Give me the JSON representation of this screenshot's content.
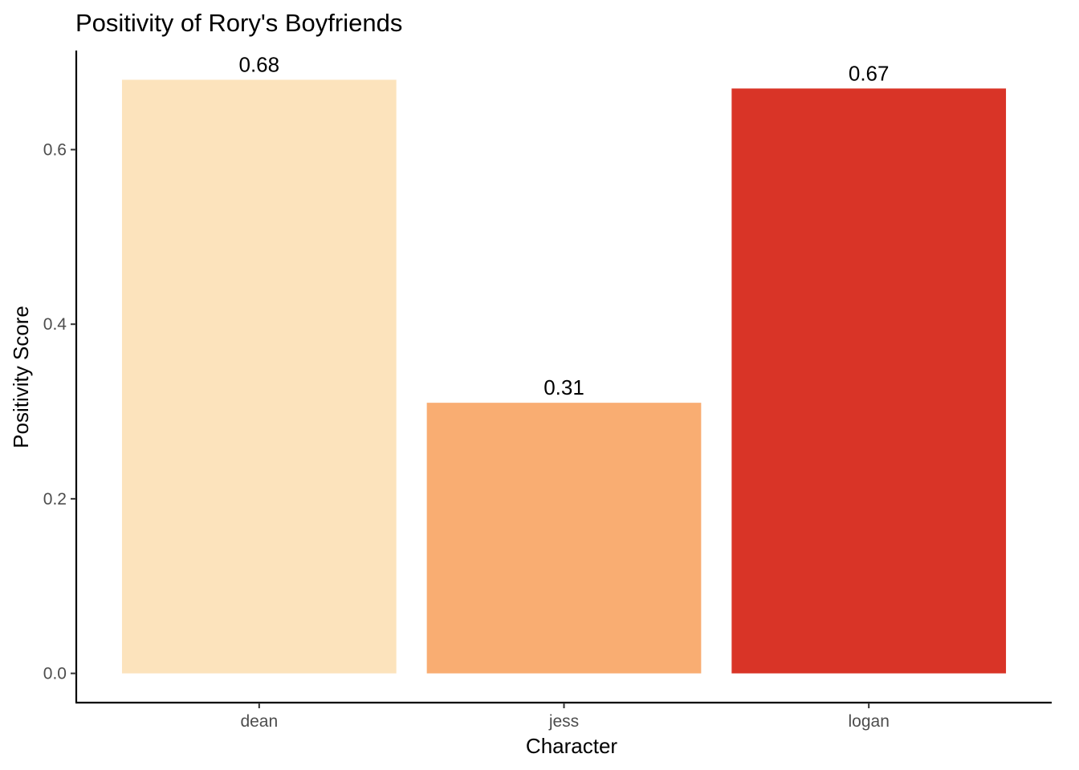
{
  "chart_data": {
    "type": "bar",
    "title": "Positivity of Rory's Boyfriends",
    "xlabel": "Character",
    "ylabel": "Positivity Score",
    "categories": [
      "dean",
      "jess",
      "logan"
    ],
    "values": [
      0.68,
      0.31,
      0.67
    ],
    "data_labels": [
      "0.68",
      "0.31",
      "0.67"
    ],
    "colors": [
      "#fce3bc",
      "#f9ad72",
      "#d93427"
    ],
    "ylim": [
      -0.0335,
      0.7135
    ],
    "yticks": [
      0.0,
      0.2,
      0.4,
      0.6
    ],
    "ytick_labels": [
      "0.0",
      "0.2",
      "0.4",
      "0.6"
    ],
    "grid": false,
    "legend": "none"
  }
}
